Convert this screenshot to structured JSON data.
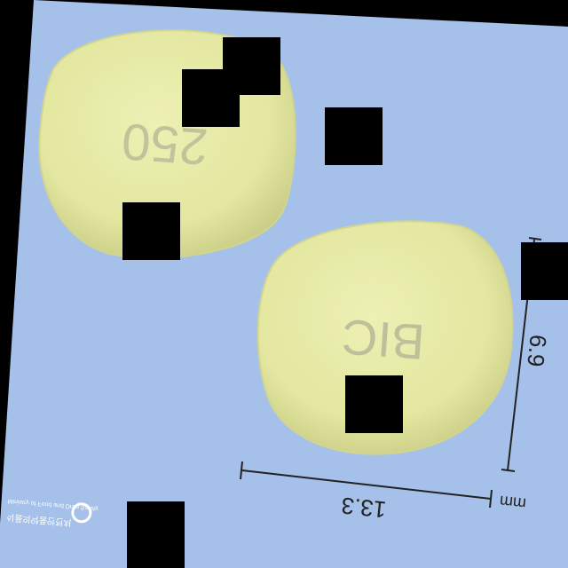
{
  "photo": {
    "background_color": "#a6c1e9",
    "pill_color": "#e6eaa4",
    "pill_front": {
      "imprint": "250"
    },
    "pill_back": {
      "imprint": "BIC"
    },
    "dimensions": {
      "length": "13.3",
      "width": "6.9",
      "unit": "mm"
    },
    "logo": {
      "korean_text": "식품의약품안전처",
      "english_text": "Ministry of Food and Drug Safety"
    }
  }
}
